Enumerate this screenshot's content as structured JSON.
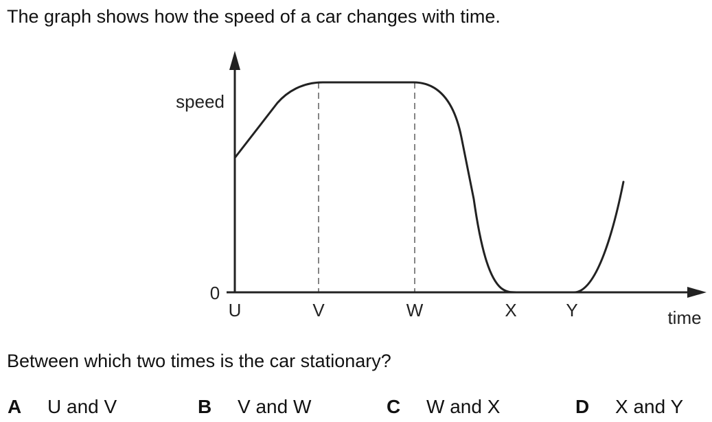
{
  "intro_text": "The graph shows how the speed of a car changes with time.",
  "graph": {
    "y_axis_label": "speed",
    "x_axis_label": "time",
    "origin_label": "0",
    "time_labels": [
      "U",
      "V",
      "W",
      "X",
      "Y"
    ],
    "axis_color": "#222222"
  },
  "chart_data": {
    "type": "line",
    "xlabel": "time",
    "ylabel": "speed",
    "x_ticks": [
      "U",
      "V",
      "W",
      "X",
      "Y"
    ],
    "y_ticks": [
      "0"
    ],
    "segments": [
      {
        "from": "U",
        "to": "V",
        "shape": "increasing (linear then levelling off)"
      },
      {
        "from": "V",
        "to": "W",
        "shape": "constant"
      },
      {
        "from": "W",
        "to": "X",
        "shape": "decreasing to zero"
      },
      {
        "from": "X",
        "to": "Y",
        "shape": "zero (stationary)"
      },
      {
        "from": "Y",
        "to": "end",
        "shape": "increasing"
      }
    ],
    "grid": false
  },
  "question": "Between which two times is the car stationary?",
  "options": [
    {
      "letter": "A",
      "text": "U and V"
    },
    {
      "letter": "B",
      "text": "V and W"
    },
    {
      "letter": "C",
      "text": "W and X"
    },
    {
      "letter": "D",
      "text": "X and Y"
    }
  ]
}
